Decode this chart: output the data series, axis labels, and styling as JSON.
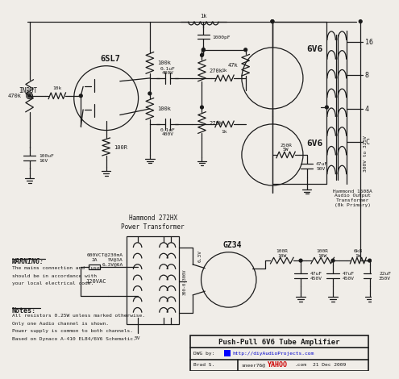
{
  "title": "Push-Pull 6V6 Tube Amplifier",
  "bg_color": "#f0ede8",
  "line_color": "#1a1a1a",
  "text_color": "#1a1a1a",
  "notes_title": "Notes:",
  "notes_lines": [
    "All resistors 0.25W unless marked otherwise.",
    "Only one Audio channel is shown.",
    "Power supply is common to both channels.",
    "Based on Dynaco A-410 EL84/6V6 Schematic."
  ],
  "warning_title": "WARNING:",
  "warning_lines": [
    "The mains connection and fuse",
    "should be in accordance with",
    "your local electrical code."
  ],
  "transformer_label": "Hammond 272HX\nPower Transformer",
  "transformer_specs": "600VCT@230mA\n5V@3A\n6.3V@6A",
  "output_transformer_label": "Hammond 1608A\nAudio Output\nTransformer\n(8k Primary)",
  "tube_labels": [
    "6SL7",
    "6V6",
    "6V6",
    "GZ34"
  ],
  "component_labels": {
    "input_resistors": [
      "10k",
      "470k",
      "100uF\n16V",
      "100R"
    ],
    "coupling_caps": [
      "0.1uF\n400V",
      "0.1uF\n400V"
    ],
    "plate_resistors": [
      "100k",
      "100k"
    ],
    "grid_resistors": [
      "270k",
      "270k"
    ],
    "cathode": [
      "47k",
      "250R\n5W",
      "47uF\n50V"
    ],
    "top": [
      "1k",
      "1000pF"
    ],
    "bias": [
      "1k",
      "1k"
    ],
    "psu": [
      "100R\n10W",
      "100R\n10W",
      "6k8\n1W",
      "47uF\n450V",
      "47uF\n450V",
      "22uF\n350V"
    ],
    "voltage": "300V to 325V",
    "hv_label": "300-0-300V",
    "filament": "6.3V",
    "filament2": "5V",
    "ac_input": "120VAC",
    "fuse": "2A",
    "ot_taps": [
      "16",
      "8",
      "4",
      "C"
    ]
  },
  "title_box": {
    "main": "Push-Pull 6V6 Tube Amplifier",
    "dwg_by": "DWG by:",
    "url": "http://diyAudioProjects.com",
    "author": "Brad S.",
    "email": "sneer76@",
    "yahoo": "YAHOO",
    "domain": ".com",
    "date": "21 Dec 2009"
  }
}
